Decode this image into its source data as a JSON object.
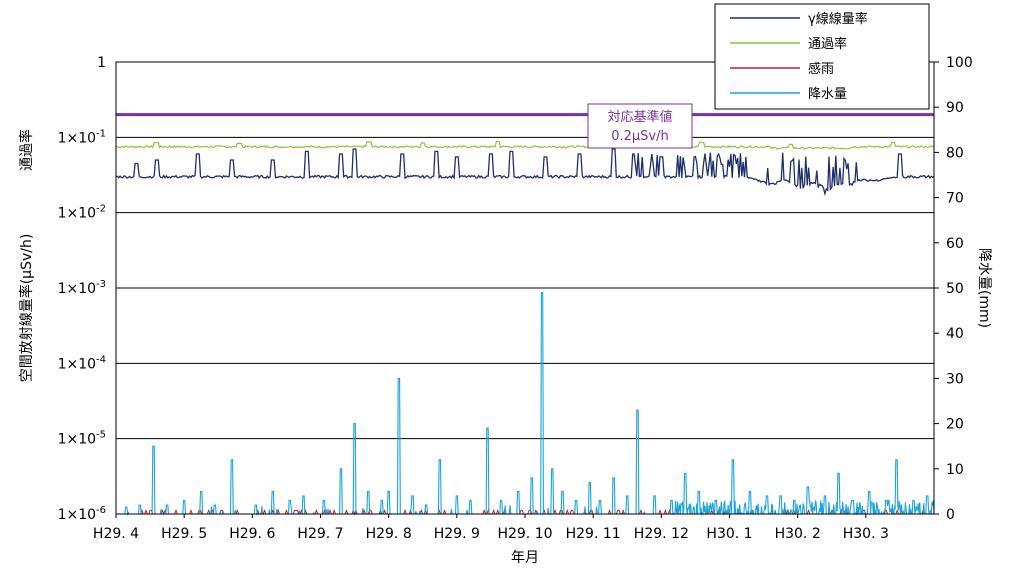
{
  "chart_data": {
    "type": "line",
    "xlabel": "年月",
    "ylabel_left": "空間放射線量率(μSv/h)",
    "ylabel_left_top": "通過率",
    "ylabel_right": "降水量(mm)",
    "y_left_scale": "log",
    "y_left_range": [
      1e-06,
      1
    ],
    "y_left_ticks": [
      {
        "base": "1",
        "exp": ""
      },
      {
        "base": "1×10",
        "exp": "-1"
      },
      {
        "base": "1×10",
        "exp": "-2"
      },
      {
        "base": "1×10",
        "exp": "-3"
      },
      {
        "base": "1×10",
        "exp": "-4"
      },
      {
        "base": "1×10",
        "exp": "-5"
      },
      {
        "base": "1×10",
        "exp": "-6"
      }
    ],
    "y_right_range": [
      0,
      100
    ],
    "y_right_ticks": [
      "0",
      "10",
      "20",
      "30",
      "40",
      "50",
      "60",
      "70",
      "80",
      "90",
      "100"
    ],
    "x_categories": [
      "H29. 4",
      "H29. 5",
      "H29. 6",
      "H29. 7",
      "H29. 8",
      "H29. 9",
      "H29. 10",
      "H29. 11",
      "H29. 12",
      "H30. 1",
      "H30. 2",
      "H30. 3"
    ],
    "grid": "horizontal at decades",
    "legend_position": "top-right",
    "reference": {
      "label": "対応基準値",
      "value_label": "0.2μSv/h",
      "value": 0.2,
      "color": "#7b2fa6"
    },
    "series": [
      {
        "name": "γ線線量率",
        "axis": "left",
        "color": "#1f2f6b",
        "baseline": 0.03,
        "spikes": [
          [
            0.3,
            0.045
          ],
          [
            0.6,
            0.05
          ],
          [
            1.2,
            0.06
          ],
          [
            1.7,
            0.05
          ],
          [
            2.3,
            0.05
          ],
          [
            2.8,
            0.065
          ],
          [
            3.3,
            0.06
          ],
          [
            3.5,
            0.07
          ],
          [
            4.2,
            0.06
          ],
          [
            4.7,
            0.065
          ],
          [
            5.0,
            0.055
          ],
          [
            5.5,
            0.06
          ],
          [
            5.8,
            0.065
          ],
          [
            6.3,
            0.055
          ],
          [
            6.8,
            0.06
          ],
          [
            7.3,
            0.07
          ],
          [
            7.6,
            0.06
          ],
          [
            8.0,
            0.055
          ],
          [
            8.5,
            0.065
          ],
          [
            9.0,
            0.06
          ],
          [
            9.4,
            0.065
          ],
          [
            10.0,
            0.055
          ],
          [
            10.5,
            0.055
          ],
          [
            11.0,
            0.06
          ],
          [
            11.5,
            0.06
          ]
        ],
        "dips": [
          [
            9.6,
            0.022
          ],
          [
            10.05,
            0.019
          ],
          [
            10.4,
            0.017
          ],
          [
            10.7,
            0.02
          ],
          [
            11.1,
            0.025
          ]
        ]
      },
      {
        "name": "通過率",
        "axis": "left",
        "color": "#8dc63f",
        "baseline": 0.075,
        "spikes": [
          [
            0.6,
            0.085
          ],
          [
            1.8,
            0.083
          ],
          [
            3.7,
            0.087
          ],
          [
            4.5,
            0.084
          ],
          [
            5.6,
            0.088
          ],
          [
            7.2,
            0.085
          ],
          [
            8.6,
            0.086
          ],
          [
            9.9,
            0.084
          ],
          [
            11.4,
            0.086
          ]
        ]
      },
      {
        "name": "感雨",
        "axis": "right",
        "color": "#c0202a",
        "baseline": 0
      },
      {
        "name": "降水量",
        "axis": "right",
        "color": "#1aa3dd",
        "baseline": 0,
        "spikes": [
          [
            0.15,
            1.5
          ],
          [
            0.35,
            2
          ],
          [
            0.55,
            15
          ],
          [
            0.75,
            2
          ],
          [
            1.0,
            3
          ],
          [
            1.25,
            5
          ],
          [
            1.45,
            2
          ],
          [
            1.7,
            12
          ],
          [
            2.05,
            2
          ],
          [
            2.3,
            5
          ],
          [
            2.55,
            3
          ],
          [
            2.75,
            4
          ],
          [
            3.05,
            3
          ],
          [
            3.3,
            10
          ],
          [
            3.5,
            20
          ],
          [
            3.7,
            5
          ],
          [
            3.9,
            3
          ],
          [
            4.0,
            5
          ],
          [
            4.15,
            30
          ],
          [
            4.35,
            4
          ],
          [
            4.55,
            2
          ],
          [
            4.75,
            12
          ],
          [
            5.0,
            4
          ],
          [
            5.2,
            3
          ],
          [
            5.45,
            19
          ],
          [
            5.65,
            3
          ],
          [
            5.9,
            5
          ],
          [
            6.1,
            8
          ],
          [
            6.25,
            49
          ],
          [
            6.4,
            10
          ],
          [
            6.55,
            5
          ],
          [
            6.75,
            3
          ],
          [
            6.95,
            7
          ],
          [
            7.1,
            3
          ],
          [
            7.3,
            8
          ],
          [
            7.5,
            4
          ],
          [
            7.65,
            23
          ],
          [
            7.9,
            4
          ],
          [
            8.15,
            3
          ],
          [
            8.35,
            9
          ],
          [
            8.55,
            5
          ],
          [
            8.8,
            3
          ],
          [
            9.05,
            12
          ],
          [
            9.3,
            5
          ],
          [
            9.55,
            4
          ],
          [
            9.75,
            4
          ],
          [
            9.95,
            3
          ],
          [
            10.15,
            6
          ],
          [
            10.4,
            4
          ],
          [
            10.6,
            9
          ],
          [
            10.8,
            3
          ],
          [
            11.05,
            5
          ],
          [
            11.3,
            3
          ],
          [
            11.45,
            12
          ],
          [
            11.7,
            3
          ],
          [
            11.9,
            4
          ],
          [
            12.05,
            2
          ]
        ],
        "noise": {
          "range": [
            8.2,
            12.3
          ],
          "max": 3
        }
      }
    ]
  }
}
